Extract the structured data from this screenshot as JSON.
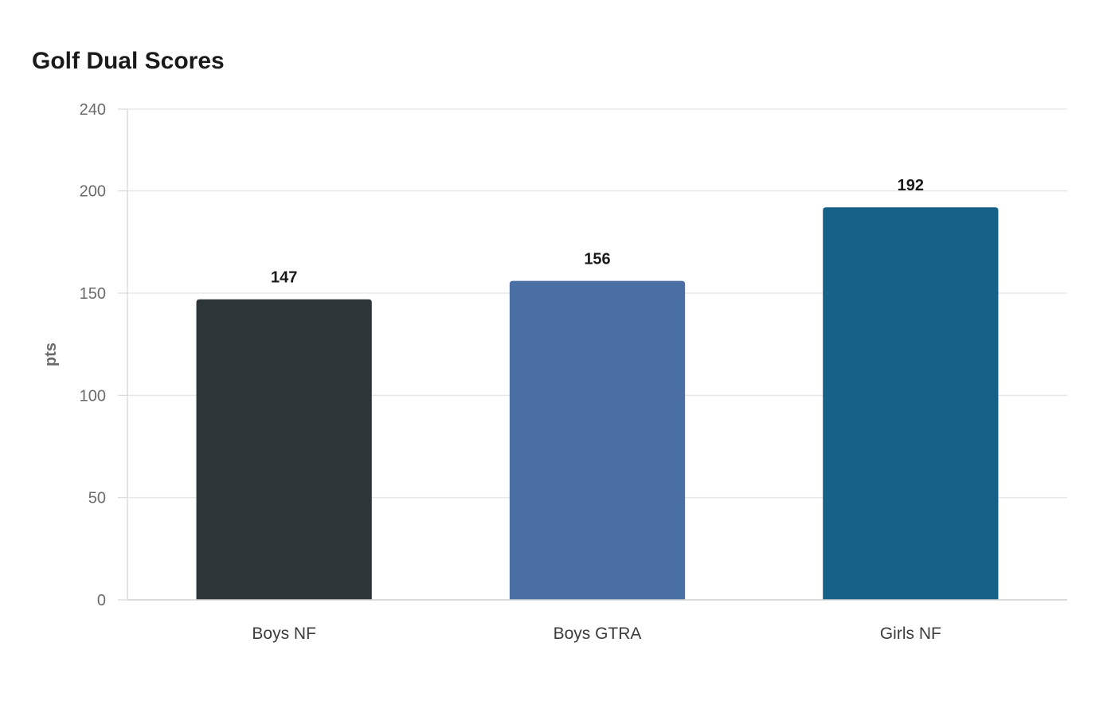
{
  "chart_data": {
    "type": "bar",
    "title": "Golf Dual Scores",
    "xlabel": "",
    "ylabel": "pts",
    "categories": [
      "Boys NF",
      "Boys GTRA",
      "Girls NF"
    ],
    "values": [
      147,
      156,
      192
    ],
    "colors": [
      "#2e3538",
      "#4a6fa5",
      "#176087"
    ],
    "ylim": [
      0,
      240
    ],
    "yticks": [
      0,
      50,
      100,
      150,
      200,
      240
    ],
    "grid": true,
    "legend": "none"
  }
}
